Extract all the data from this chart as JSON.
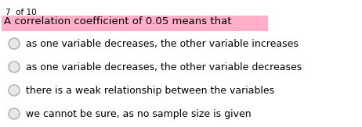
{
  "counter_text": "7  of 10",
  "question": "A correlation coefficient of 0.05 means that",
  "question_bg_color": "#FFB0C8",
  "question_text_color": "#000000",
  "options": [
    "as one variable decreases, the other variable increases",
    "as one variable decreases, the other variable decreases",
    "there is a weak relationship between the variables",
    "we cannot be sure, as no sample size is given"
  ],
  "counter_fontsize": 7.5,
  "question_fontsize": 9.5,
  "option_fontsize": 9.0,
  "bg_color": "#ffffff",
  "radio_edge_color": "#aaaaaa",
  "radio_fill": "#e8e8e8"
}
